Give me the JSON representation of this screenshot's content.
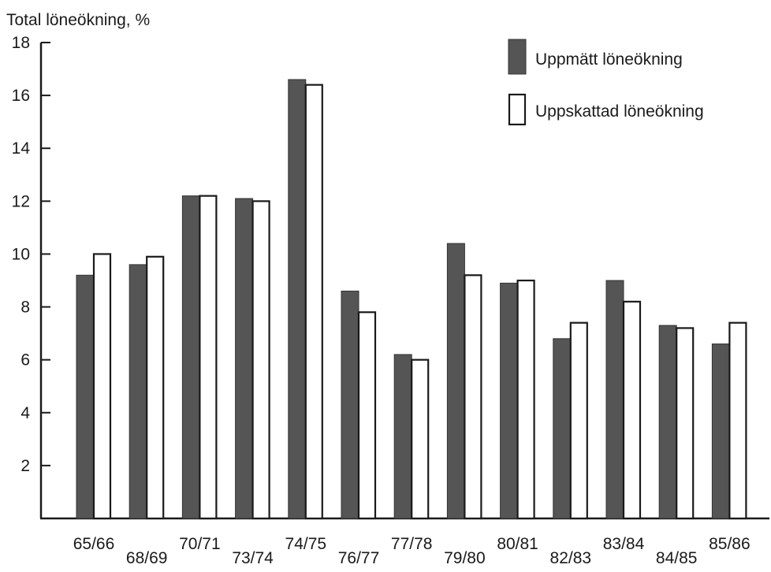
{
  "chart_data": {
    "type": "bar",
    "title": "",
    "xlabel": "",
    "ylabel": "Total löneökning, %",
    "ylim": [
      0,
      18
    ],
    "yticks": [
      2,
      4,
      6,
      8,
      10,
      12,
      14,
      16,
      18
    ],
    "ytick_labels": [
      "2",
      "4",
      "6",
      "8",
      "10",
      "12",
      "14",
      "16",
      "18"
    ],
    "grid": false,
    "legend_position": "top-right",
    "categories": [
      "65/66",
      "68/69",
      "70/71",
      "73/74",
      "74/75",
      "76/77",
      "77/78",
      "79/80",
      "80/81",
      "82/83",
      "83/84",
      "84/85",
      "85/86"
    ],
    "series": [
      {
        "name": "Uppmätt löneökning",
        "color": "#555555",
        "style": "filled",
        "values": [
          9.2,
          9.6,
          12.2,
          12.1,
          16.6,
          8.6,
          6.2,
          10.4,
          8.9,
          6.8,
          9.0,
          7.3,
          6.6
        ]
      },
      {
        "name": "Uppskattad löneökning",
        "color": "#ffffff",
        "style": "outline",
        "values": [
          10.0,
          9.9,
          12.2,
          12.0,
          16.4,
          7.8,
          6.0,
          9.2,
          9.0,
          7.4,
          8.2,
          7.2,
          7.4
        ]
      }
    ]
  }
}
